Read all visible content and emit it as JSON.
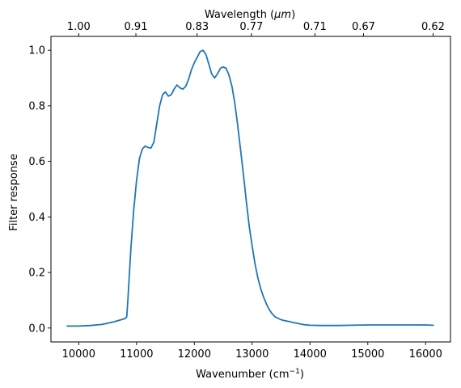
{
  "chart_data": {
    "type": "line",
    "title": "",
    "xlabel": "Wavenumber (cm",
    "xlabel_superscript": "−1",
    "xlabel_suffix": ")",
    "ylabel": "Filter response",
    "secondary_xlabel": "Wavelength (",
    "secondary_xlabel_unit": "μm",
    "secondary_xlabel_suffix": ")",
    "xlim": [
      9520,
      16430
    ],
    "ylim": [
      -0.05,
      1.05
    ],
    "x_ticks": [
      10000,
      11000,
      12000,
      13000,
      14000,
      15000,
      16000
    ],
    "x_tick_labels": [
      "10000",
      "11000",
      "12000",
      "13000",
      "14000",
      "15000",
      "16000"
    ],
    "y_ticks": [
      0.0,
      0.2,
      0.4,
      0.6,
      0.8,
      1.0
    ],
    "y_tick_labels": [
      "0.0",
      "0.2",
      "0.4",
      "0.6",
      "0.8",
      "1.0"
    ],
    "secondary_x_ticks": [
      1.0,
      0.91,
      0.83,
      0.77,
      0.71,
      0.67,
      0.62
    ],
    "secondary_x_tick_labels": [
      "1.00",
      "0.91",
      "0.83",
      "0.77",
      "0.71",
      "0.67",
      "0.62"
    ],
    "grid": false,
    "series": [
      {
        "color": "#1f77b4",
        "x": [
          9800,
          10000,
          10200,
          10400,
          10600,
          10700,
          10800,
          10830,
          10850,
          10900,
          10950,
          11000,
          11050,
          11100,
          11150,
          11200,
          11250,
          11300,
          11350,
          11400,
          11450,
          11500,
          11550,
          11600,
          11650,
          11700,
          11750,
          11800,
          11850,
          11900,
          11950,
          12000,
          12050,
          12100,
          12150,
          12200,
          12250,
          12300,
          12350,
          12400,
          12450,
          12500,
          12550,
          12600,
          12650,
          12700,
          12750,
          12800,
          12850,
          12900,
          12950,
          13000,
          13050,
          13100,
          13150,
          13200,
          13250,
          13300,
          13350,
          13400,
          13450,
          13500,
          13550,
          13600,
          13650,
          13700,
          13800,
          13900,
          14000,
          14200,
          14500,
          14700,
          15000,
          15500,
          16000,
          16130
        ],
        "y": [
          0.007,
          0.007,
          0.009,
          0.013,
          0.022,
          0.028,
          0.034,
          0.04,
          0.1,
          0.28,
          0.42,
          0.53,
          0.61,
          0.645,
          0.655,
          0.65,
          0.648,
          0.67,
          0.735,
          0.8,
          0.84,
          0.85,
          0.835,
          0.84,
          0.86,
          0.875,
          0.865,
          0.86,
          0.87,
          0.895,
          0.93,
          0.955,
          0.975,
          0.995,
          1.0,
          0.985,
          0.95,
          0.915,
          0.9,
          0.915,
          0.935,
          0.94,
          0.935,
          0.91,
          0.87,
          0.81,
          0.73,
          0.64,
          0.55,
          0.455,
          0.365,
          0.295,
          0.23,
          0.18,
          0.14,
          0.11,
          0.085,
          0.065,
          0.05,
          0.04,
          0.035,
          0.03,
          0.027,
          0.025,
          0.023,
          0.02,
          0.016,
          0.012,
          0.01,
          0.009,
          0.009,
          0.01,
          0.011,
          0.011,
          0.011,
          0.01
        ]
      }
    ]
  }
}
